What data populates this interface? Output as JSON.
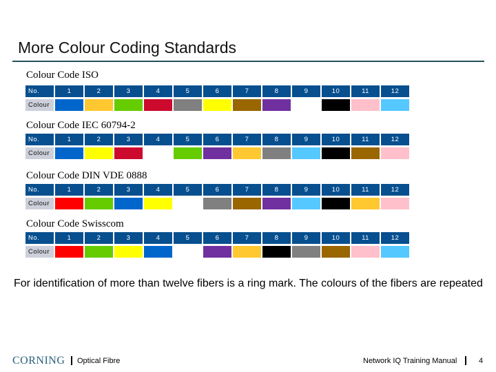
{
  "slide": {
    "title": "More Colour Coding Standards",
    "note": "For identification of more than twelve fibers is a ring mark. The colours of the fibers are repeated"
  },
  "palette": {
    "blue": "#0066cc",
    "orange": "#ffc830",
    "green": "#66cc00",
    "red": "#cc0a2e",
    "gray": "#808080",
    "yellow": "#ffff00",
    "brown": "#996600",
    "violet": "#7030a0",
    "white": "#ffffff",
    "black": "#000000",
    "pink": "#ffc0cb",
    "light_blue": "#55c8ff",
    "bright_red": "#ff0000"
  },
  "standards": [
    {
      "label": "Colour Code ISO",
      "header_label": "No.",
      "row_label": "Colour",
      "numbers": [
        "1",
        "2",
        "3",
        "4",
        "5",
        "6",
        "7",
        "8",
        "9",
        "10",
        "11",
        "12"
      ],
      "colours": [
        "blue",
        "orange",
        "green",
        "red",
        "gray",
        "yellow",
        "brown",
        "violet",
        "white",
        "black",
        "pink",
        "light_blue"
      ]
    },
    {
      "label": "Colour Code IEC 60794-2",
      "header_label": "No.",
      "row_label": "Colour",
      "numbers": [
        "1",
        "2",
        "3",
        "4",
        "5",
        "6",
        "7",
        "8",
        "9",
        "10",
        "11",
        "12"
      ],
      "colours": [
        "blue",
        "yellow",
        "red",
        "white",
        "green",
        "violet",
        "orange",
        "gray",
        "light_blue",
        "black",
        "brown",
        "pink"
      ]
    },
    {
      "label": "Colour Code DIN VDE 0888",
      "header_label": "No.",
      "row_label": "Colour",
      "numbers": [
        "1",
        "2",
        "3",
        "4",
        "5",
        "6",
        "7",
        "8",
        "9",
        "10",
        "11",
        "12"
      ],
      "colours": [
        "bright_red",
        "green",
        "blue",
        "yellow",
        "white",
        "gray",
        "brown",
        "violet",
        "light_blue",
        "black",
        "orange",
        "pink"
      ]
    },
    {
      "label": "Colour Code Swisscom",
      "header_label": "No.",
      "row_label": "Colour",
      "numbers": [
        "1",
        "2",
        "3",
        "4",
        "5",
        "6",
        "7",
        "8",
        "9",
        "10",
        "11",
        "12"
      ],
      "colours": [
        "bright_red",
        "green",
        "yellow",
        "blue",
        "white",
        "violet",
        "orange",
        "black",
        "gray",
        "brown",
        "pink",
        "light_blue"
      ]
    }
  ],
  "footer": {
    "logo": "CORNING",
    "left_text": "Optical Fibre",
    "right_text": "Network IQ Training Manual",
    "page_number": "4"
  }
}
